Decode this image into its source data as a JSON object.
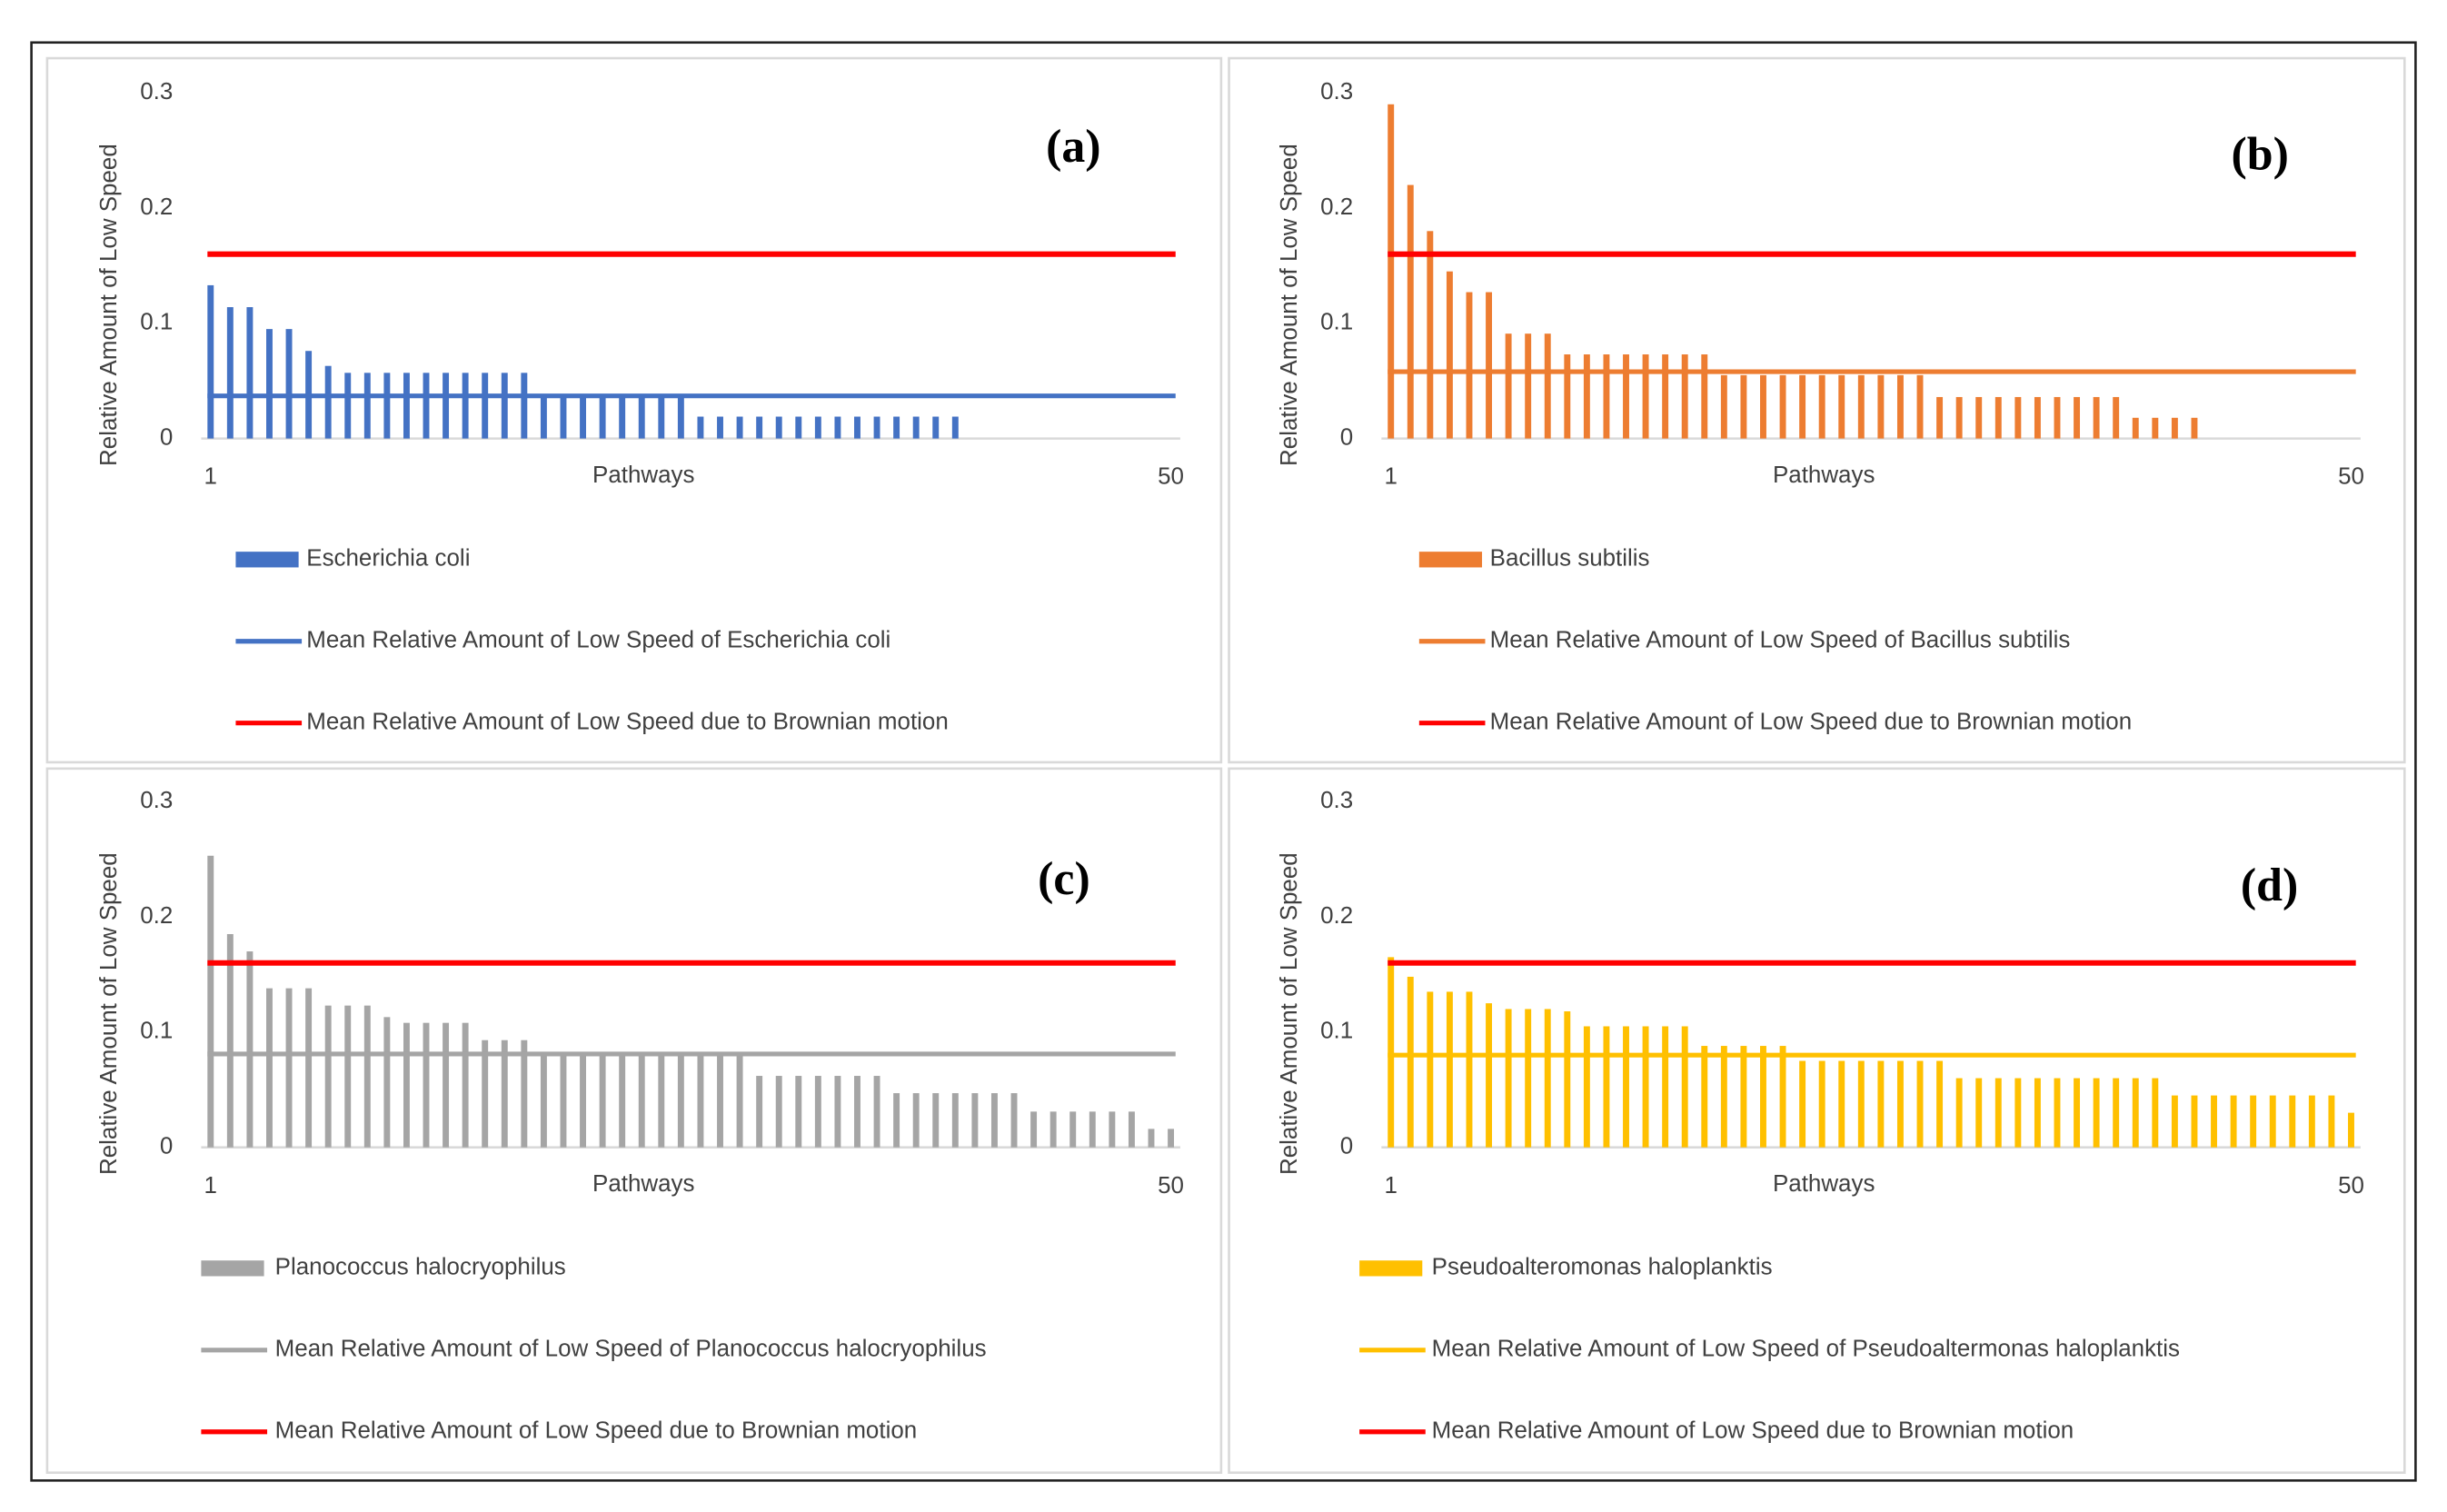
{
  "chart_data": [
    {
      "type": "bar",
      "panel_label": "(a)",
      "ylabel": "Relative Amount of Low Speed",
      "xlabel": "Pathways",
      "xlim": [
        1,
        50
      ],
      "xticks": [
        1,
        50
      ],
      "ylim": [
        0,
        0.3
      ],
      "yticks": [
        0,
        0.1,
        0.2,
        0.3
      ],
      "x": [
        1,
        2,
        3,
        4,
        5,
        6,
        7,
        8,
        9,
        10,
        11,
        12,
        13,
        14,
        15,
        16,
        17,
        18,
        19,
        20,
        21,
        22,
        23,
        24,
        25,
        26,
        27,
        28,
        29,
        30,
        31,
        32,
        33,
        34,
        35,
        36,
        37,
        38,
        39
      ],
      "series": [
        {
          "name": "Escherichia coli",
          "color": "#4472c4",
          "values": [
            0.133,
            0.114,
            0.114,
            0.095,
            0.095,
            0.076,
            0.063,
            0.057,
            0.057,
            0.057,
            0.057,
            0.057,
            0.057,
            0.057,
            0.057,
            0.057,
            0.057,
            0.038,
            0.038,
            0.038,
            0.038,
            0.038,
            0.038,
            0.038,
            0.038,
            0.019,
            0.019,
            0.019,
            0.019,
            0.019,
            0.019,
            0.019,
            0.019,
            0.019,
            0.019,
            0.019,
            0.019,
            0.019,
            0.019
          ]
        }
      ],
      "reference_lines": [
        {
          "name": "Mean Relative Amount of Low Speed of Escherichia coli",
          "color": "#4472c4",
          "value": 0.037
        },
        {
          "name": "Mean Relative Amount of Low Speed due to Brownian motion",
          "color": "#ff0000",
          "value": 0.16
        }
      ]
    },
    {
      "type": "bar",
      "panel_label": "(b)",
      "ylabel": "Relative Amount of Low Speed",
      "xlabel": "Pathways",
      "xlim": [
        1,
        50
      ],
      "xticks": [
        1,
        50
      ],
      "ylim": [
        0,
        0.3
      ],
      "yticks": [
        0,
        0.1,
        0.2,
        0.3
      ],
      "x": [
        1,
        2,
        3,
        4,
        5,
        6,
        7,
        8,
        9,
        10,
        11,
        12,
        13,
        14,
        15,
        16,
        17,
        18,
        19,
        20,
        21,
        22,
        23,
        24,
        25,
        26,
        27,
        28,
        29,
        30,
        31,
        32,
        33,
        34,
        35,
        36,
        37,
        38,
        39,
        40,
        41,
        42
      ],
      "series": [
        {
          "name": "Bacillus subtilis",
          "color": "#ed7d31",
          "values": [
            0.29,
            0.22,
            0.18,
            0.145,
            0.127,
            0.127,
            0.091,
            0.091,
            0.091,
            0.073,
            0.073,
            0.073,
            0.073,
            0.073,
            0.073,
            0.073,
            0.073,
            0.055,
            0.055,
            0.055,
            0.055,
            0.055,
            0.055,
            0.055,
            0.055,
            0.055,
            0.055,
            0.055,
            0.036,
            0.036,
            0.036,
            0.036,
            0.036,
            0.036,
            0.036,
            0.036,
            0.036,
            0.036,
            0.018,
            0.018,
            0.018,
            0.018
          ]
        }
      ],
      "reference_lines": [
        {
          "name": "Mean Relative Amount of Low Speed of Bacillus subtilis",
          "color": "#ed7d31",
          "value": 0.058
        },
        {
          "name": "Mean Relative Amount of Low Speed due to Brownian motion",
          "color": "#ff0000",
          "value": 0.16
        }
      ]
    },
    {
      "type": "bar",
      "panel_label": "(c)",
      "ylabel": "Relative Amount of Low Speed",
      "xlabel": "Pathways",
      "xlim": [
        1,
        50
      ],
      "xticks": [
        1,
        50
      ],
      "ylim": [
        0,
        0.3
      ],
      "yticks": [
        0,
        0.1,
        0.2,
        0.3
      ],
      "x": [
        1,
        2,
        3,
        4,
        5,
        6,
        7,
        8,
        9,
        10,
        11,
        12,
        13,
        14,
        15,
        16,
        17,
        18,
        19,
        20,
        21,
        22,
        23,
        24,
        25,
        26,
        27,
        28,
        29,
        30,
        31,
        32,
        33,
        34,
        35,
        36,
        37,
        38,
        39,
        40,
        41,
        42,
        43,
        44,
        45,
        46,
        47,
        48,
        49,
        50
      ],
      "series": [
        {
          "name": "Planococcus halocryophilus",
          "color": "#a5a5a5",
          "values": [
            0.253,
            0.185,
            0.17,
            0.138,
            0.138,
            0.138,
            0.123,
            0.123,
            0.123,
            0.113,
            0.108,
            0.108,
            0.108,
            0.108,
            0.093,
            0.093,
            0.093,
            0.08,
            0.08,
            0.08,
            0.08,
            0.08,
            0.08,
            0.08,
            0.08,
            0.08,
            0.08,
            0.08,
            0.062,
            0.062,
            0.062,
            0.062,
            0.062,
            0.062,
            0.062,
            0.047,
            0.047,
            0.047,
            0.047,
            0.047,
            0.047,
            0.047,
            0.031,
            0.031,
            0.031,
            0.031,
            0.031,
            0.031,
            0.016,
            0.016
          ]
        }
      ],
      "reference_lines": [
        {
          "name": "Mean Relative Amount of Low Speed of Planococcus halocryophilus",
          "color": "#a5a5a5",
          "value": 0.081
        },
        {
          "name": "Mean Relative Amount of Low Speed due to Brownian motion",
          "color": "#ff0000",
          "value": 0.16
        }
      ]
    },
    {
      "type": "bar",
      "panel_label": "(d)",
      "ylabel": "Relative Amount of Low Speed",
      "xlabel": "Pathways",
      "xlim": [
        1,
        50
      ],
      "xticks": [
        1,
        50
      ],
      "ylim": [
        0,
        0.3
      ],
      "yticks": [
        0,
        0.1,
        0.2,
        0.3
      ],
      "x": [
        1,
        2,
        3,
        4,
        5,
        6,
        7,
        8,
        9,
        10,
        11,
        12,
        13,
        14,
        15,
        16,
        17,
        18,
        19,
        20,
        21,
        22,
        23,
        24,
        25,
        26,
        27,
        28,
        29,
        30,
        31,
        32,
        33,
        34,
        35,
        36,
        37,
        38,
        39,
        40,
        41,
        42,
        43,
        44,
        45,
        46,
        47,
        48,
        49,
        50
      ],
      "series": [
        {
          "name": "Pseudoalteromonas haloplanktis",
          "color": "#ffc000",
          "values": [
            0.165,
            0.148,
            0.135,
            0.135,
            0.135,
            0.125,
            0.12,
            0.12,
            0.12,
            0.118,
            0.105,
            0.105,
            0.105,
            0.105,
            0.105,
            0.105,
            0.088,
            0.088,
            0.088,
            0.088,
            0.088,
            0.075,
            0.075,
            0.075,
            0.075,
            0.075,
            0.075,
            0.075,
            0.075,
            0.06,
            0.06,
            0.06,
            0.06,
            0.06,
            0.06,
            0.06,
            0.06,
            0.06,
            0.06,
            0.06,
            0.045,
            0.045,
            0.045,
            0.045,
            0.045,
            0.045,
            0.045,
            0.045,
            0.045,
            0.03
          ]
        }
      ],
      "reference_lines": [
        {
          "name": "Mean Relative Amount of Low Speed of Pseudoaltermonas haloplanktis",
          "color": "#ffc000",
          "value": 0.08
        },
        {
          "name": "Mean Relative Amount of Low Speed due to Brownian motion",
          "color": "#ff0000",
          "value": 0.16
        }
      ]
    }
  ]
}
